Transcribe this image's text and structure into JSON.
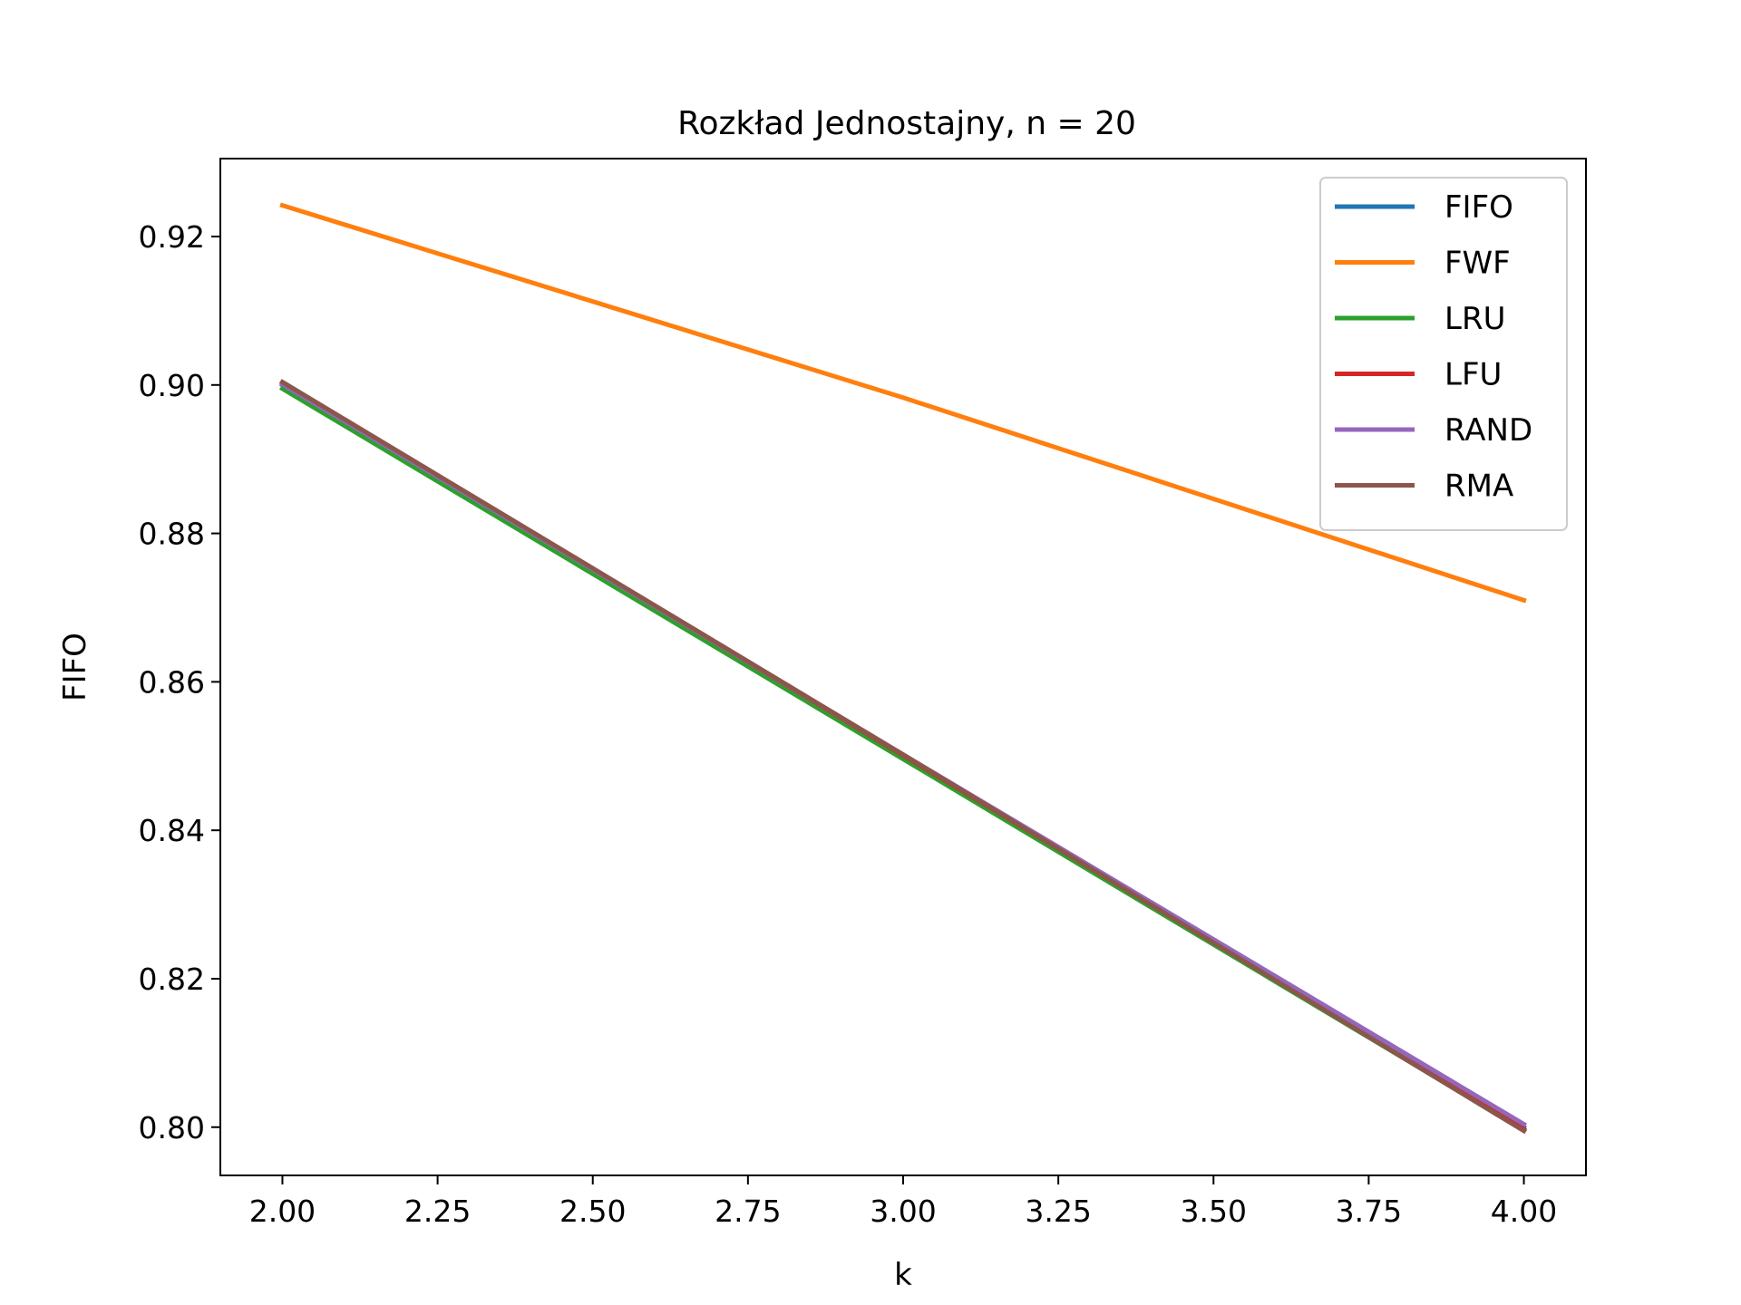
{
  "chart_data": {
    "type": "line",
    "title": "Rozkład Jednostajny, n = 20",
    "xlabel": "k",
    "ylabel": "FIFO",
    "xlim": [
      1.9,
      4.1
    ],
    "ylim": [
      0.7935,
      0.9305
    ],
    "grid": false,
    "legend_position": "top-right",
    "x_ticks": [
      2.0,
      2.25,
      2.5,
      2.75,
      3.0,
      3.25,
      3.5,
      3.75,
      4.0
    ],
    "x_tick_labels": [
      "2.00",
      "2.25",
      "2.50",
      "2.75",
      "3.00",
      "3.25",
      "3.50",
      "3.75",
      "4.00"
    ],
    "y_ticks": [
      0.8,
      0.82,
      0.84,
      0.86,
      0.88,
      0.9,
      0.92
    ],
    "y_tick_labels": [
      "0.80",
      "0.82",
      "0.84",
      "0.86",
      "0.88",
      "0.90",
      "0.92"
    ],
    "x": [
      2,
      3,
      4
    ],
    "series": [
      {
        "name": "FIFO",
        "color": "#1f77b4",
        "values": [
          0.9,
          0.85,
          0.8
        ]
      },
      {
        "name": "FWF",
        "color": "#ff7f0e",
        "values": [
          0.9242,
          0.8983,
          0.871
        ]
      },
      {
        "name": "LRU",
        "color": "#2ca02c",
        "values": [
          0.8995,
          0.8496,
          0.7996
        ]
      },
      {
        "name": "LFU",
        "color": "#d62728",
        "values": [
          0.9003,
          0.8501,
          0.7997
        ]
      },
      {
        "name": "RAND",
        "color": "#9467bd",
        "values": [
          0.9001,
          0.8502,
          0.8004
        ]
      },
      {
        "name": "RMA",
        "color": "#8c564b",
        "values": [
          0.9004,
          0.8502,
          0.7995
        ]
      }
    ]
  }
}
